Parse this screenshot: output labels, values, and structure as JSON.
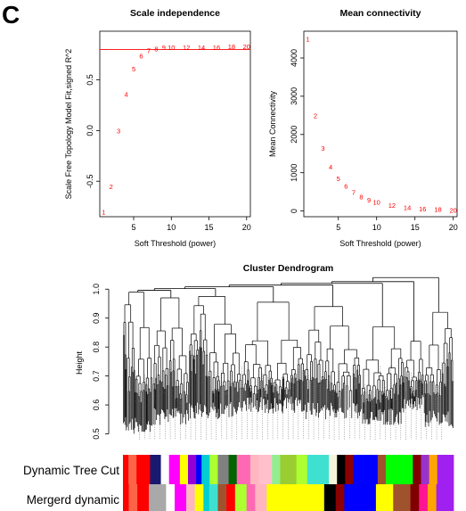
{
  "panel_letter": "C",
  "chart_data": [
    {
      "type": "scatter",
      "title": "Scale independence",
      "xlabel": "Soft Threshold (power)",
      "ylabel": "Scale Free Topology Model Fit,signed R^2",
      "xlim": [
        0.5,
        20.5
      ],
      "ylim": [
        -0.85,
        0.98
      ],
      "xticks": [
        "5",
        "10",
        "15",
        "20"
      ],
      "yticks": [
        "-0.5",
        "0.0",
        "0.5"
      ],
      "point_color": "#ff0000",
      "reference_line": {
        "y": 0.8,
        "color": "#ff0000"
      },
      "points": [
        {
          "x": 1,
          "y": -0.8,
          "label": "1"
        },
        {
          "x": 2,
          "y": -0.55,
          "label": "2"
        },
        {
          "x": 3,
          "y": 0.0,
          "label": "3"
        },
        {
          "x": 4,
          "y": 0.36,
          "label": "4"
        },
        {
          "x": 5,
          "y": 0.61,
          "label": "5"
        },
        {
          "x": 6,
          "y": 0.74,
          "label": "6"
        },
        {
          "x": 7,
          "y": 0.79,
          "label": "7"
        },
        {
          "x": 8,
          "y": 0.81,
          "label": "8"
        },
        {
          "x": 9,
          "y": 0.82,
          "label": "9"
        },
        {
          "x": 10,
          "y": 0.82,
          "label": "10"
        },
        {
          "x": 12,
          "y": 0.82,
          "label": "12"
        },
        {
          "x": 14,
          "y": 0.82,
          "label": "14"
        },
        {
          "x": 16,
          "y": 0.82,
          "label": "16"
        },
        {
          "x": 18,
          "y": 0.83,
          "label": "18"
        },
        {
          "x": 20,
          "y": 0.83,
          "label": "20"
        }
      ]
    },
    {
      "type": "scatter",
      "title": "Mean connectivity",
      "xlabel": "Soft Threshold (power)",
      "ylabel": "Mean Connectivity",
      "xlim": [
        0.5,
        20.5
      ],
      "ylim": [
        -150,
        4700
      ],
      "xticks": [
        "5",
        "10",
        "15",
        "20"
      ],
      "yticks": [
        "0",
        "1000",
        "2000",
        "3000",
        "4000"
      ],
      "point_color": "#ff0000",
      "points": [
        {
          "x": 1,
          "y": 4500,
          "label": "1"
        },
        {
          "x": 2,
          "y": 2500,
          "label": "2"
        },
        {
          "x": 3,
          "y": 1650,
          "label": "3"
        },
        {
          "x": 4,
          "y": 1150,
          "label": "4"
        },
        {
          "x": 5,
          "y": 850,
          "label": "5"
        },
        {
          "x": 6,
          "y": 650,
          "label": "6"
        },
        {
          "x": 7,
          "y": 490,
          "label": "7"
        },
        {
          "x": 8,
          "y": 370,
          "label": "8"
        },
        {
          "x": 9,
          "y": 290,
          "label": "9"
        },
        {
          "x": 10,
          "y": 230,
          "label": "10"
        },
        {
          "x": 12,
          "y": 150,
          "label": "12"
        },
        {
          "x": 14,
          "y": 100,
          "label": "14"
        },
        {
          "x": 16,
          "y": 65,
          "label": "16"
        },
        {
          "x": 18,
          "y": 45,
          "label": "18"
        },
        {
          "x": 20,
          "y": 30,
          "label": "20"
        }
      ]
    },
    {
      "type": "dendrogram",
      "title": "Cluster Dendrogram",
      "ylabel": "Height",
      "ylim": [
        0.48,
        1.01
      ],
      "yticks": [
        "0.5",
        "0.6",
        "0.7",
        "0.8",
        "0.9",
        "1.0"
      ],
      "branch_color": "#000000",
      "clusters": [
        {
          "x0": 0.0,
          "x1": 0.09,
          "join": 0.99,
          "floor": 0.5
        },
        {
          "x0": 0.09,
          "x1": 0.2,
          "join": 0.97,
          "floor": 0.53
        },
        {
          "x0": 0.2,
          "x1": 0.36,
          "join": 0.975,
          "floor": 0.55
        },
        {
          "x0": 0.36,
          "x1": 0.55,
          "join": 0.955,
          "floor": 0.57
        },
        {
          "x0": 0.55,
          "x1": 0.72,
          "join": 0.94,
          "floor": 0.55
        },
        {
          "x0": 0.72,
          "x1": 0.85,
          "join": 0.87,
          "floor": 0.53
        },
        {
          "x0": 0.85,
          "x1": 0.91,
          "join": 0.82,
          "floor": 0.58
        },
        {
          "x0": 0.91,
          "x1": 1.0,
          "join": 0.92,
          "floor": 0.52
        }
      ],
      "color_rows": [
        {
          "label": "Dynamic Tree Cut",
          "segments": [
            {
              "w": 2,
              "c": "#ff0000"
            },
            {
              "w": 3,
              "c": "#ff6347"
            },
            {
              "w": 5,
              "c": "#ff0000"
            },
            {
              "w": 4,
              "c": "#191970"
            },
            {
              "w": 3,
              "c": "#ffffff"
            },
            {
              "w": 4,
              "c": "#ff00ff"
            },
            {
              "w": 3,
              "c": "#ffff00"
            },
            {
              "w": 3,
              "c": "#9400d3"
            },
            {
              "w": 2,
              "c": "#0000ff"
            },
            {
              "w": 3,
              "c": "#00ced1"
            },
            {
              "w": 3,
              "c": "#adff2f"
            },
            {
              "w": 4,
              "c": "#808080"
            },
            {
              "w": 3,
              "c": "#006400"
            },
            {
              "w": 5,
              "c": "#ff69b4"
            },
            {
              "w": 3,
              "c": "#ffb6c1"
            },
            {
              "w": 5,
              "c": "#ffc0cb"
            },
            {
              "w": 3,
              "c": "#90ee90"
            },
            {
              "w": 6,
              "c": "#9acd32"
            },
            {
              "w": 4,
              "c": "#adff2f"
            },
            {
              "w": 8,
              "c": "#40e0d0"
            },
            {
              "w": 3,
              "c": "#f5f5dc"
            },
            {
              "w": 3,
              "c": "#000000"
            },
            {
              "w": 3,
              "c": "#8b0000"
            },
            {
              "w": 9,
              "c": "#0000ff"
            },
            {
              "w": 3,
              "c": "#a0522d"
            },
            {
              "w": 10,
              "c": "#00ff00"
            },
            {
              "w": 3,
              "c": "#800000"
            },
            {
              "w": 3,
              "c": "#9932cc"
            },
            {
              "w": 3,
              "c": "#ffa500"
            },
            {
              "w": 6,
              "c": "#a020f0"
            }
          ]
        },
        {
          "label": "Mergerd dynamic",
          "segments": [
            {
              "w": 2,
              "c": "#ff0000"
            },
            {
              "w": 3,
              "c": "#ff6347"
            },
            {
              "w": 4,
              "c": "#ff0000"
            },
            {
              "w": 6,
              "c": "#a9a9a9"
            },
            {
              "w": 3,
              "c": "#ffffff"
            },
            {
              "w": 4,
              "c": "#ff00ff"
            },
            {
              "w": 3,
              "c": "#ffb6c1"
            },
            {
              "w": 3,
              "c": "#ffff00"
            },
            {
              "w": 2,
              "c": "#00ced1"
            },
            {
              "w": 3,
              "c": "#40e0d0"
            },
            {
              "w": 3,
              "c": "#a0522d"
            },
            {
              "w": 3,
              "c": "#ff0000"
            },
            {
              "w": 4,
              "c": "#adff2f"
            },
            {
              "w": 3,
              "c": "#ff69b4"
            },
            {
              "w": 4,
              "c": "#ffb6c1"
            },
            {
              "w": 20,
              "c": "#ffff00"
            },
            {
              "w": 4,
              "c": "#000000"
            },
            {
              "w": 3,
              "c": "#8b0000"
            },
            {
              "w": 11,
              "c": "#0000ff"
            },
            {
              "w": 6,
              "c": "#ffff00"
            },
            {
              "w": 6,
              "c": "#a0522d"
            },
            {
              "w": 3,
              "c": "#800000"
            },
            {
              "w": 3,
              "c": "#ff1493"
            },
            {
              "w": 3,
              "c": "#ffa500"
            },
            {
              "w": 6,
              "c": "#a020f0"
            }
          ]
        }
      ]
    }
  ]
}
